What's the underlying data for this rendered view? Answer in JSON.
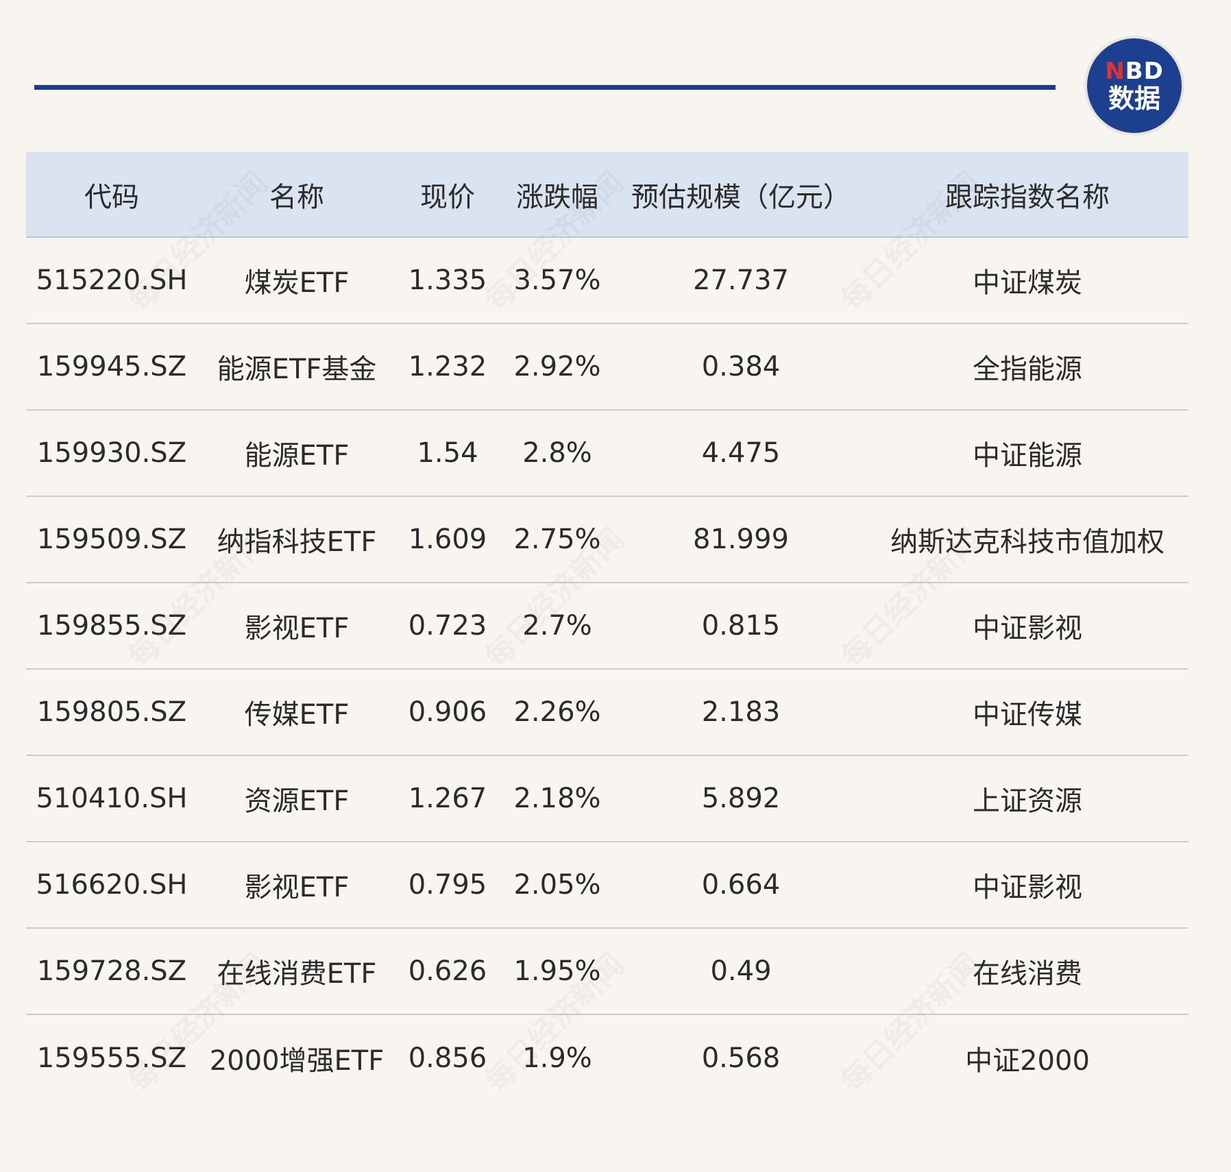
{
  "logo": {
    "top": "NBD",
    "top_first": "N",
    "top_rest": "BD",
    "bottom": "数据"
  },
  "watermark": "每日经济新闻",
  "table": {
    "headers": [
      "代码",
      "名称",
      "现价",
      "涨跌幅",
      "预估规模（亿元）",
      "跟踪指数名称"
    ],
    "rows": [
      [
        "515220.SH",
        "煤炭ETF",
        "1.335",
        "3.57%",
        "27.737",
        "中证煤炭"
      ],
      [
        "159945.SZ",
        "能源ETF基金",
        "1.232",
        "2.92%",
        "0.384",
        "全指能源"
      ],
      [
        "159930.SZ",
        "能源ETF",
        "1.54",
        "2.8%",
        "4.475",
        "中证能源"
      ],
      [
        "159509.SZ",
        "纳指科技ETF",
        "1.609",
        "2.75%",
        "81.999",
        "纳斯达克科技市值加权"
      ],
      [
        "159855.SZ",
        "影视ETF",
        "0.723",
        "2.7%",
        "0.815",
        "中证影视"
      ],
      [
        "159805.SZ",
        "传媒ETF",
        "0.906",
        "2.26%",
        "2.183",
        "中证传媒"
      ],
      [
        "510410.SH",
        "资源ETF",
        "1.267",
        "2.18%",
        "5.892",
        "上证资源"
      ],
      [
        "516620.SH",
        "影视ETF",
        "0.795",
        "2.05%",
        "0.664",
        "中证影视"
      ],
      [
        "159728.SZ",
        "在线消费ETF",
        "0.626",
        "1.95%",
        "0.49",
        "在线消费"
      ],
      [
        "159555.SZ",
        "2000增强ETF",
        "0.856",
        "1.9%",
        "0.568",
        "中证2000"
      ]
    ]
  },
  "colors": {
    "background": "#f8f5f1",
    "accent": "#1c3c8c",
    "header_bg": "#d9e4f0",
    "logo_red": "#e0322e"
  }
}
